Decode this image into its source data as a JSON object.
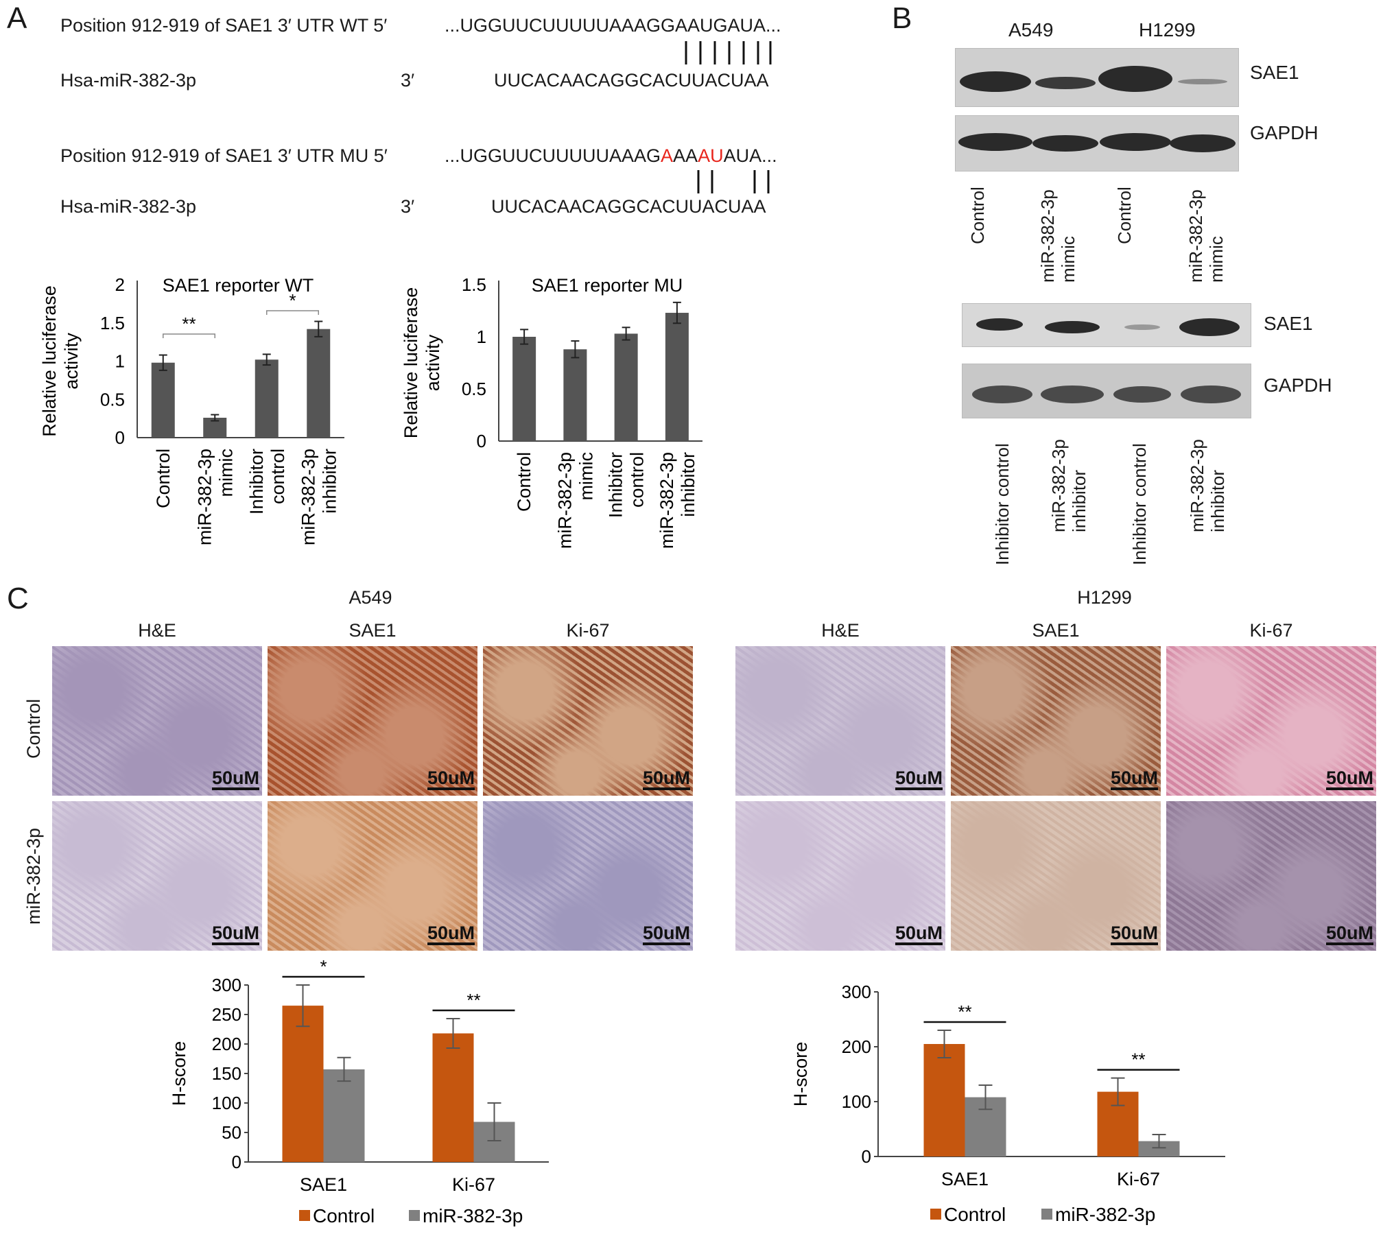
{
  "panels": {
    "a": "A",
    "b": "B",
    "c": "C"
  },
  "sequences": {
    "wt_label": "Position 912-919 of SAE1 3′ UTR WT 5′",
    "wt_seq": "...UGGUUCUUUUUAAAGGAAUGAUA...",
    "mir_label": "Hsa-miR-382-3p",
    "mir_end": "3′",
    "mir_seq": "UUCACAACAGGCACUUACUAA",
    "mu_label": "Position 912-919 of SAE1 3′ UTR MU 5′",
    "mu_seq_a": "...UGGUUCUUUUUAAAG",
    "mu_seq_b": "A",
    "mu_seq_c": "AA",
    "mu_seq_d": "AU",
    "mu_seq_e": "AUA..."
  },
  "blot_b": {
    "cell_lines": [
      "A549",
      "H1299"
    ],
    "top_labels": [
      "SAE1",
      "GAPDH"
    ],
    "top_lanes": [
      "Control",
      "miR-382-3p\nmimic",
      "Control",
      "miR-382-3p\nmimic"
    ],
    "bottom_labels": [
      "SAE1",
      "GAPDH"
    ],
    "bottom_lanes": [
      "Inhibitor control",
      "miR-382-3p\ninhibitor",
      "Inhibitor control",
      "miR-382-3p\ninhibitor"
    ]
  },
  "tissue_c": {
    "cell_lines": [
      "A549",
      "H1299"
    ],
    "stains": [
      "H&E",
      "SAE1",
      "Ki-67"
    ],
    "rows": [
      "Control",
      "miR-382-3p"
    ],
    "scale": "50uM"
  },
  "chart_data": [
    {
      "type": "bar",
      "title": "SAE1 reporter WT",
      "ylabel": "Relative luciferase activity",
      "categories": [
        "Control",
        "miR-382-3p mimic",
        "Inhibitor control",
        "miR-382-3p inhibitor"
      ],
      "values": [
        0.98,
        0.26,
        1.02,
        1.42
      ],
      "errors": [
        0.1,
        0.04,
        0.07,
        0.1
      ],
      "ylim": [
        0,
        2
      ],
      "yticks": [
        "0",
        "0.5",
        "1",
        "1.5",
        "2"
      ],
      "significance": [
        "**",
        "*"
      ]
    },
    {
      "type": "bar",
      "title": "SAE1 reporter MU",
      "ylabel": "Relative luciferase activity",
      "categories": [
        "Control",
        "miR-382-3p mimic",
        "Inhibitor control",
        "miR-382-3p inhibitor"
      ],
      "values": [
        1.0,
        0.88,
        1.03,
        1.23
      ],
      "errors": [
        0.07,
        0.08,
        0.06,
        0.1
      ],
      "ylim": [
        0,
        1.5
      ],
      "yticks": [
        "0",
        "0.5",
        "1",
        "1.5"
      ]
    },
    {
      "type": "bar",
      "ylabel": "H-score",
      "categories": [
        "SAE1",
        "Ki-67"
      ],
      "series": [
        {
          "name": "Control",
          "values": [
            265,
            218
          ],
          "errors": [
            35,
            25
          ],
          "color": "#c5560f"
        },
        {
          "name": "miR-382-3p",
          "values": [
            157,
            68
          ],
          "errors": [
            20,
            32
          ],
          "color": "#808080"
        }
      ],
      "ylim": [
        0,
        300
      ],
      "yticks": [
        "0",
        "50",
        "100",
        "150",
        "200",
        "250",
        "300"
      ],
      "significance": [
        "*",
        "**"
      ]
    },
    {
      "type": "bar",
      "ylabel": "H-score",
      "categories": [
        "SAE1",
        "Ki-67"
      ],
      "series": [
        {
          "name": "Control",
          "values": [
            205,
            118
          ],
          "errors": [
            25,
            25
          ],
          "color": "#c5560f"
        },
        {
          "name": "miR-382-3p",
          "values": [
            108,
            28
          ],
          "errors": [
            22,
            12
          ],
          "color": "#808080"
        }
      ],
      "ylim": [
        0,
        300
      ],
      "yticks": [
        "0",
        "100",
        "200",
        "300"
      ],
      "significance": [
        "**",
        "**"
      ]
    }
  ]
}
